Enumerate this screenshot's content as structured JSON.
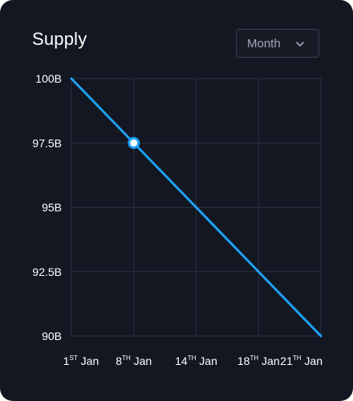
{
  "header": {
    "title": "Supply"
  },
  "period_select": {
    "selected": "Month",
    "icon": "chevron-down-icon"
  },
  "colors": {
    "background": "#131722",
    "line": "#1da1f2",
    "grid": "#2b3040",
    "text": "#ffffff",
    "muted": "#a3a8b5"
  },
  "chart_data": {
    "type": "line",
    "title": "Supply",
    "xlabel": "",
    "ylabel": "",
    "x_ticks": [
      {
        "day": "1",
        "suffix": "ST",
        "month": "Jan"
      },
      {
        "day": "8",
        "suffix": "TH",
        "month": "Jan"
      },
      {
        "day": "14",
        "suffix": "TH",
        "month": "Jan"
      },
      {
        "day": "18",
        "suffix": "TH",
        "month": "Jan"
      },
      {
        "day": "21",
        "suffix": "TH",
        "month": "Jan"
      }
    ],
    "y_ticks": [
      "100B",
      "97.5B",
      "95B",
      "92.5B",
      "90B"
    ],
    "ylim": [
      90,
      100
    ],
    "y_unit": "B",
    "series": [
      {
        "values": [
          100,
          97.5,
          95,
          92.5,
          90
        ],
        "highlight_index": 1
      }
    ],
    "grid": true,
    "legend": "none"
  }
}
